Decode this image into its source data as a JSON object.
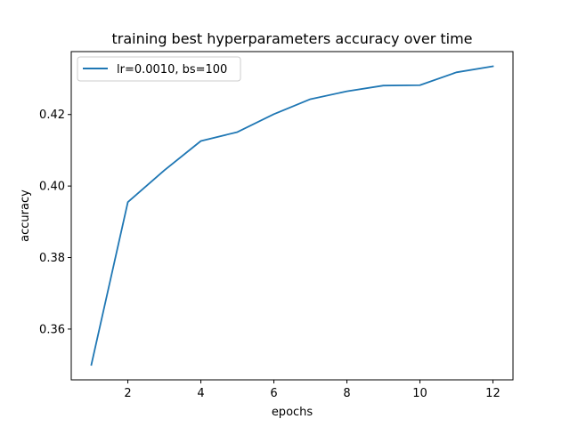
{
  "chart_data": {
    "type": "line",
    "title": "training best hyperparameters accuracy over time",
    "xlabel": "epochs",
    "ylabel": "accuracy",
    "xlim": [
      0.45,
      12.55
    ],
    "ylim": [
      0.3458,
      0.4376
    ],
    "x_ticks": [
      2,
      4,
      6,
      8,
      10,
      12
    ],
    "y_ticks": [
      0.36,
      0.38,
      0.4,
      0.42
    ],
    "x_tick_labels": [
      "2",
      "4",
      "6",
      "8",
      "10",
      "12"
    ],
    "y_tick_labels": [
      "0.36",
      "0.38",
      "0.40",
      "0.42"
    ],
    "grid": false,
    "legend_position": "upper-left",
    "x": [
      1,
      2,
      3,
      4,
      5,
      6,
      7,
      8,
      9,
      10,
      11,
      12
    ],
    "series": [
      {
        "name": "lr=0.0010, bs=100",
        "color": "#1f77b4",
        "values": [
          0.35,
          0.3955,
          0.4044,
          0.4126,
          0.4151,
          0.4201,
          0.4243,
          0.4265,
          0.4281,
          0.4282,
          0.4318,
          0.4335
        ]
      }
    ]
  }
}
